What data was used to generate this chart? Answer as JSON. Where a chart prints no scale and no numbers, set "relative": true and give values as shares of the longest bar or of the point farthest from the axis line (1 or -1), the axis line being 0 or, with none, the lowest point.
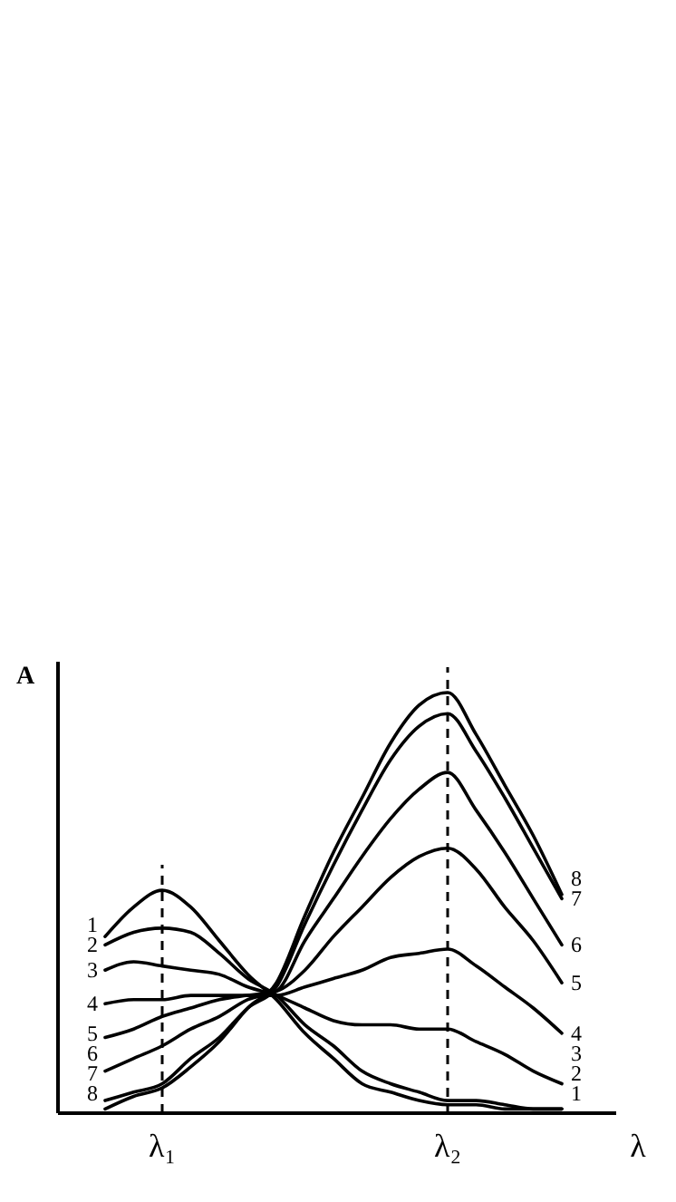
{
  "chart_data": {
    "type": "line",
    "relative": true,
    "xlabel": "λ",
    "ylabel": "A",
    "categories": [
      null,
      null,
      "λ₁",
      null,
      null,
      null,
      null,
      null,
      null,
      null,
      null,
      null,
      "λ₂",
      null,
      null,
      null,
      null
    ],
    "ref_lines": [
      {
        "axis": "x",
        "value": "λ₁",
        "line_style": "dashed"
      },
      {
        "axis": "x",
        "value": "λ₂",
        "line_style": "dashed"
      }
    ],
    "marker": "none",
    "line_style": "solid",
    "series": [
      {
        "name": "1",
        "color": "#000000",
        "values": [
          0.42,
          0.49,
          0.53,
          0.49,
          0.41,
          0.33,
          0.27,
          0.19,
          0.13,
          0.07,
          0.05,
          0.03,
          0.02,
          0.02,
          0.01,
          0.01,
          0.01
        ]
      },
      {
        "name": "2",
        "color": "#000000",
        "values": [
          0.4,
          0.43,
          0.44,
          0.43,
          0.38,
          0.32,
          0.28,
          0.21,
          0.16,
          0.1,
          0.07,
          0.05,
          0.03,
          0.03,
          0.02,
          0.01,
          0.01
        ]
      },
      {
        "name": "3",
        "color": "#000000",
        "values": [
          0.34,
          0.36,
          0.35,
          0.34,
          0.33,
          0.3,
          0.28,
          0.25,
          0.22,
          0.21,
          0.21,
          0.2,
          0.2,
          0.17,
          0.14,
          0.1,
          0.07
        ]
      },
      {
        "name": "4",
        "color": "#000000",
        "values": [
          0.26,
          0.27,
          0.27,
          0.28,
          0.28,
          0.28,
          0.28,
          0.3,
          0.32,
          0.34,
          0.37,
          0.38,
          0.39,
          0.35,
          0.3,
          0.25,
          0.19
        ]
      },
      {
        "name": "5",
        "color": "#000000",
        "values": [
          0.18,
          0.2,
          0.23,
          0.25,
          0.27,
          0.28,
          0.29,
          0.34,
          0.42,
          0.49,
          0.56,
          0.61,
          0.63,
          0.58,
          0.49,
          0.41,
          0.31
        ]
      },
      {
        "name": "6",
        "color": "#000000",
        "values": [
          0.1,
          0.13,
          0.16,
          0.2,
          0.23,
          0.27,
          0.29,
          0.41,
          0.51,
          0.61,
          0.7,
          0.77,
          0.81,
          0.72,
          0.62,
          0.51,
          0.4
        ]
      },
      {
        "name": "7",
        "color": "#000000",
        "values": [
          0.03,
          0.05,
          0.07,
          0.13,
          0.18,
          0.25,
          0.3,
          0.45,
          0.59,
          0.72,
          0.84,
          0.92,
          0.95,
          0.86,
          0.75,
          0.63,
          0.51
        ]
      },
      {
        "name": "8",
        "color": "#000000",
        "values": [
          0.01,
          0.04,
          0.06,
          0.11,
          0.17,
          0.25,
          0.31,
          0.47,
          0.62,
          0.75,
          0.88,
          0.97,
          1,
          0.9,
          0.78,
          0.66,
          0.52
        ]
      }
    ]
  }
}
